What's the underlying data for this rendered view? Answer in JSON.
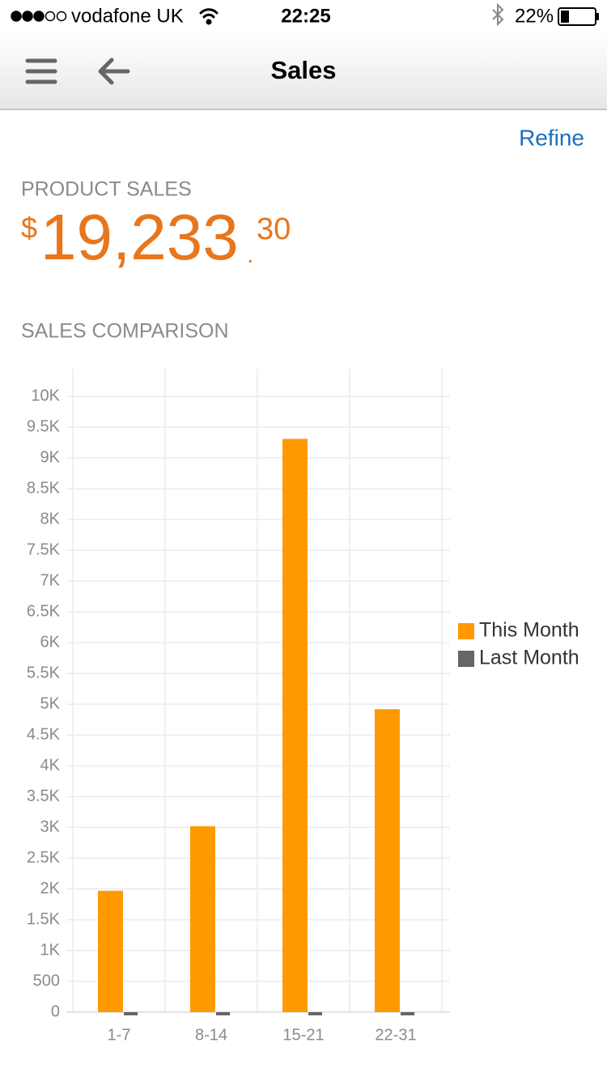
{
  "status_bar": {
    "carrier": "vodafone UK",
    "time": "22:25",
    "battery": "22%"
  },
  "nav": {
    "title": "Sales"
  },
  "refine": "Refine",
  "product_sales": {
    "label": "PRODUCT SALES",
    "currency": "$",
    "whole": "19,233",
    "decimal": ".",
    "cents": "30"
  },
  "chart_data": {
    "type": "bar",
    "title": "SALES COMPARISON",
    "categories": [
      "1-7",
      "8-14",
      "15-21",
      "22-31"
    ],
    "series": [
      {
        "name": "This Month",
        "color": "#ff9900",
        "values": [
          1970,
          3020,
          9310,
          4920
        ]
      },
      {
        "name": "Last Month",
        "color": "#666666",
        "values": [
          0,
          0,
          0,
          0
        ]
      }
    ],
    "ylim": [
      0,
      10450
    ],
    "yticks": [
      0,
      500,
      {
        "value": 1000,
        "label": "1K"
      },
      {
        "value": 1500,
        "label": "1.5K"
      },
      {
        "value": 2000,
        "label": "2K"
      },
      {
        "value": 2500,
        "label": "2.5K"
      },
      {
        "value": 3000,
        "label": "3K"
      },
      {
        "value": 3500,
        "label": "3.5K"
      },
      {
        "value": 4000,
        "label": "4K"
      },
      {
        "value": 4500,
        "label": "4.5K"
      },
      {
        "value": 5000,
        "label": "5K"
      },
      {
        "value": 5500,
        "label": "5.5K"
      },
      {
        "value": 6000,
        "label": "6K"
      },
      {
        "value": 6500,
        "label": "6.5K"
      },
      {
        "value": 7000,
        "label": "7K"
      },
      {
        "value": 7500,
        "label": "7.5K"
      },
      {
        "value": 8000,
        "label": "8K"
      },
      {
        "value": 8500,
        "label": "8.5K"
      },
      {
        "value": 9000,
        "label": "9K"
      },
      {
        "value": 9500,
        "label": "9.5K"
      },
      {
        "value": 10000,
        "label": "10K"
      }
    ],
    "grid": true,
    "legend": "right",
    "selected_category_index": 3,
    "selected_color": "#e8761c"
  }
}
